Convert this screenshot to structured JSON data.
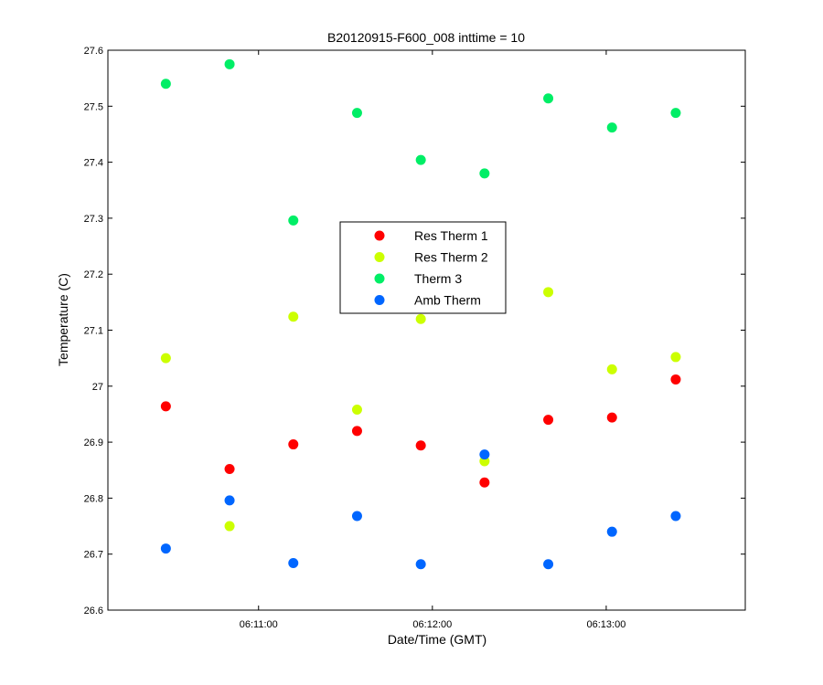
{
  "chart_data": {
    "type": "scatter",
    "title": "B20120915-F600_008 inttime = 10",
    "xlabel": "Date/Time (GMT)",
    "ylabel": "Temperature (C)",
    "xlim": [
      "06:10:08",
      "06:13:48"
    ],
    "ylim": [
      26.6,
      27.6
    ],
    "x_ticks": [
      "06:11:00",
      "06:12:00",
      "06:13:00"
    ],
    "y_ticks": [
      "26.6",
      "26.7",
      "26.8",
      "26.9",
      "27",
      "27.1",
      "27.2",
      "27.3",
      "27.4",
      "27.5",
      "27.6"
    ],
    "grid": false,
    "legend_position": "center",
    "x": [
      "06:10:28",
      "06:10:50",
      "06:11:12",
      "06:11:34",
      "06:11:56",
      "06:12:18",
      "06:12:40",
      "06:13:02",
      "06:13:24"
    ],
    "series": [
      {
        "name": "Res Therm 1",
        "color": "#ff0000",
        "values": [
          26.964,
          26.852,
          26.896,
          26.92,
          26.894,
          26.828,
          26.94,
          26.944,
          27.012
        ]
      },
      {
        "name": "Res Therm 2",
        "color": "#ccff00",
        "values": [
          27.05,
          26.75,
          27.124,
          26.958,
          27.12,
          26.866,
          27.168,
          27.03,
          27.052
        ]
      },
      {
        "name": "Therm 3",
        "color": "#00ee66",
        "values": [
          27.54,
          27.575,
          27.296,
          27.488,
          27.404,
          27.38,
          27.514,
          27.462,
          27.488
        ]
      },
      {
        "name": "Amb Therm",
        "color": "#0066ff",
        "values": [
          26.71,
          26.796,
          26.684,
          26.768,
          26.682,
          26.878,
          26.682,
          26.74,
          26.768
        ]
      }
    ]
  }
}
